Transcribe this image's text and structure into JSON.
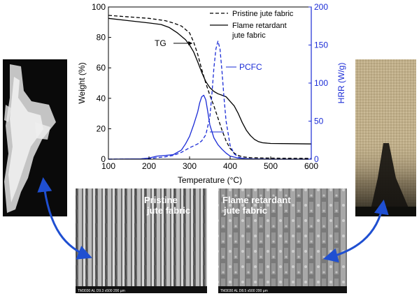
{
  "chart_data": {
    "type": "line",
    "xlabel": "Temperature (°C)",
    "ylabel_left": "Weight (%)",
    "ylabel_right": "HRR (W/g)",
    "xlim": [
      100,
      600
    ],
    "ylim_left": [
      0,
      100
    ],
    "ylim_right": [
      0,
      200
    ],
    "xticks": [
      "100",
      "200",
      "300",
      "400",
      "500",
      "600"
    ],
    "yticks_left": [
      "0",
      "20",
      "40",
      "60",
      "80",
      "100"
    ],
    "yticks_right": [
      "0",
      "50",
      "100",
      "150",
      "200"
    ],
    "legend_position": "top-right",
    "legend": [
      {
        "name": "Pristine jute fabric",
        "style": "dashed"
      },
      {
        "name": "Flame retardant",
        "name2": "jute fabric",
        "style": "solid"
      }
    ],
    "annotations": {
      "tg": "TG",
      "pcfc": "PCFC"
    },
    "series": [
      {
        "name": "Pristine jute fabric",
        "kind": "TG",
        "axis": "left",
        "color": "#000000",
        "dash": true,
        "x": [
          100,
          150,
          200,
          240,
          260,
          280,
          300,
          310,
          320,
          330,
          340,
          350,
          360,
          370,
          380,
          390,
          400,
          410,
          420,
          430,
          450,
          500,
          600
        ],
        "y": [
          94.5,
          93.5,
          92.5,
          91,
          89.5,
          87.5,
          83,
          77,
          69,
          59,
          50,
          42,
          35,
          27,
          19,
          12,
          7,
          4,
          2.5,
          1.5,
          1,
          0.7,
          0.5
        ]
      },
      {
        "name": "Flame retardant jute fabric",
        "kind": "TG",
        "axis": "left",
        "color": "#000000",
        "dash": false,
        "x": [
          100,
          150,
          200,
          230,
          250,
          270,
          290,
          300,
          310,
          320,
          330,
          340,
          350,
          360,
          370,
          380,
          390,
          400,
          410,
          420,
          430,
          440,
          450,
          460,
          470,
          480,
          500,
          550,
          600
        ],
        "y": [
          92.5,
          91,
          89.5,
          88.5,
          86.5,
          83,
          78.5,
          75,
          70.5,
          64,
          57,
          51,
          47,
          44.5,
          43,
          42,
          41,
          38,
          35,
          30,
          24,
          19,
          15.5,
          13,
          11.5,
          10.8,
          10.3,
          10.2,
          10
        ]
      },
      {
        "name": "Pristine jute fabric",
        "kind": "PCFC",
        "axis": "right",
        "color": "#1a2bd6",
        "dash": true,
        "x": [
          100,
          200,
          220,
          240,
          260,
          280,
          300,
          320,
          330,
          340,
          350,
          355,
          360,
          365,
          370,
          375,
          380,
          385,
          390,
          400,
          410,
          420,
          430,
          450,
          500,
          600
        ],
        "y": [
          0,
          0.5,
          2,
          3,
          5,
          9,
          15,
          20,
          24,
          32,
          55,
          85,
          120,
          145,
          155,
          145,
          115,
          80,
          50,
          18,
          7,
          3,
          1,
          0.5,
          0,
          0
        ]
      },
      {
        "name": "Flame retardant jute fabric",
        "kind": "PCFC",
        "axis": "right",
        "color": "#1a2bd6",
        "dash": false,
        "x": [
          100,
          180,
          200,
          220,
          240,
          260,
          280,
          290,
          300,
          310,
          320,
          325,
          330,
          335,
          340,
          345,
          350,
          360,
          370,
          380,
          390,
          400,
          420,
          450,
          500,
          600
        ],
        "y": [
          0,
          0.5,
          1.5,
          4,
          5,
          6,
          12,
          20,
          30,
          45,
          62,
          74,
          82,
          84,
          78,
          62,
          45,
          28,
          19,
          13,
          8,
          4,
          1.5,
          0.5,
          0,
          0
        ]
      }
    ]
  },
  "micrographs": {
    "pristine": {
      "label_line1": "Pristine",
      "label_line2": "jute fabric",
      "scalebar": "TM3030      AL  D9.3  x500     200 µm"
    },
    "flame_retardant": {
      "label_line1": "Flame retardant",
      "label_line2": "jute fabric",
      "scalebar": "TM3030      AL  D8.5  x500     200 µm"
    }
  },
  "colors": {
    "accent_blue": "#1a2bd6",
    "arrow_blue": "#1f4fd1"
  }
}
